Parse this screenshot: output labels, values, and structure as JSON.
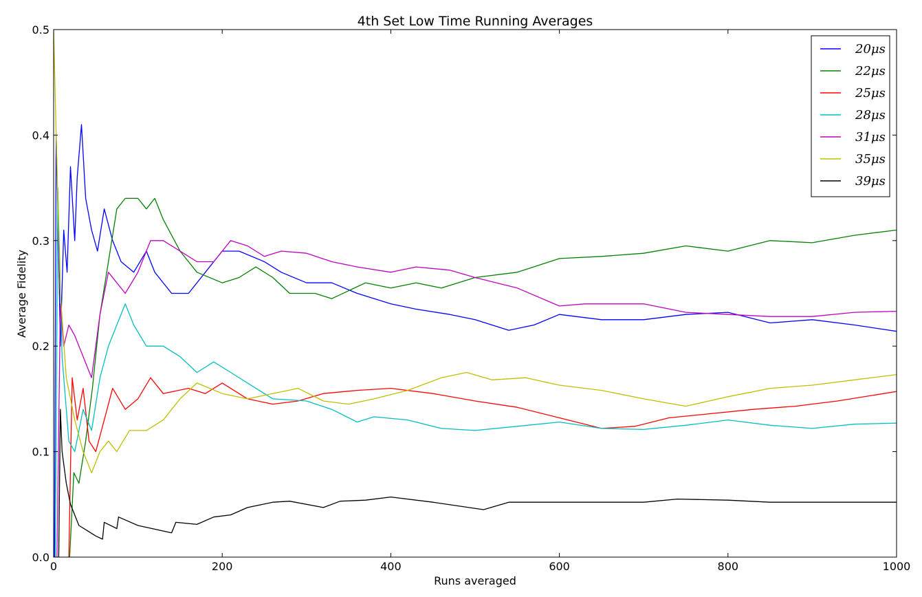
{
  "chart_data": {
    "type": "line",
    "title": "4th Set Low Time Running Averages",
    "xlabel": "Runs averaged",
    "ylabel": "Average Fidelity",
    "xlim": [
      0,
      1000
    ],
    "ylim": [
      0.0,
      0.5
    ],
    "xticks": [
      0,
      200,
      400,
      600,
      800,
      1000
    ],
    "xtick_labels": [
      "0",
      "200",
      "400",
      "600",
      "800",
      "1000"
    ],
    "yticks": [
      0.0,
      0.1,
      0.2,
      0.3,
      0.4,
      0.5
    ],
    "ytick_labels": [
      "0.0",
      "0.1",
      "0.2",
      "0.3",
      "0.4",
      "0.5"
    ],
    "grid": false,
    "legend_position": "top-right",
    "series": [
      {
        "name": "20μs",
        "color": "#0000ff",
        "points": [
          [
            1,
            0.0
          ],
          [
            3,
            0.4
          ],
          [
            5,
            0.33
          ],
          [
            8,
            0.2
          ],
          [
            12,
            0.31
          ],
          [
            16,
            0.27
          ],
          [
            20,
            0.37
          ],
          [
            25,
            0.3
          ],
          [
            28,
            0.36
          ],
          [
            33,
            0.41
          ],
          [
            38,
            0.34
          ],
          [
            45,
            0.31
          ],
          [
            52,
            0.29
          ],
          [
            60,
            0.33
          ],
          [
            70,
            0.3
          ],
          [
            80,
            0.28
          ],
          [
            95,
            0.27
          ],
          [
            110,
            0.29
          ],
          [
            120,
            0.27
          ],
          [
            140,
            0.25
          ],
          [
            160,
            0.25
          ],
          [
            180,
            0.27
          ],
          [
            200,
            0.29
          ],
          [
            220,
            0.29
          ],
          [
            250,
            0.28
          ],
          [
            270,
            0.27
          ],
          [
            300,
            0.26
          ],
          [
            330,
            0.26
          ],
          [
            360,
            0.25
          ],
          [
            400,
            0.24
          ],
          [
            430,
            0.235
          ],
          [
            470,
            0.23
          ],
          [
            500,
            0.225
          ],
          [
            540,
            0.215
          ],
          [
            570,
            0.22
          ],
          [
            600,
            0.23
          ],
          [
            650,
            0.225
          ],
          [
            700,
            0.225
          ],
          [
            750,
            0.23
          ],
          [
            800,
            0.232
          ],
          [
            850,
            0.222
          ],
          [
            900,
            0.225
          ],
          [
            950,
            0.22
          ],
          [
            1000,
            0.214
          ]
        ]
      },
      {
        "name": "22μs",
        "color": "#008000",
        "points": [
          [
            19,
            0.0
          ],
          [
            24,
            0.08
          ],
          [
            30,
            0.07
          ],
          [
            38,
            0.11
          ],
          [
            46,
            0.16
          ],
          [
            55,
            0.23
          ],
          [
            65,
            0.28
          ],
          [
            75,
            0.33
          ],
          [
            85,
            0.34
          ],
          [
            100,
            0.34
          ],
          [
            110,
            0.33
          ],
          [
            120,
            0.34
          ],
          [
            130,
            0.32
          ],
          [
            150,
            0.29
          ],
          [
            170,
            0.27
          ],
          [
            200,
            0.26
          ],
          [
            220,
            0.265
          ],
          [
            240,
            0.275
          ],
          [
            260,
            0.265
          ],
          [
            280,
            0.25
          ],
          [
            310,
            0.25
          ],
          [
            330,
            0.245
          ],
          [
            370,
            0.26
          ],
          [
            400,
            0.255
          ],
          [
            430,
            0.26
          ],
          [
            460,
            0.255
          ],
          [
            500,
            0.265
          ],
          [
            550,
            0.27
          ],
          [
            600,
            0.283
          ],
          [
            650,
            0.285
          ],
          [
            700,
            0.288
          ],
          [
            750,
            0.295
          ],
          [
            800,
            0.29
          ],
          [
            850,
            0.3
          ],
          [
            900,
            0.298
          ],
          [
            950,
            0.305
          ],
          [
            1000,
            0.31
          ]
        ]
      },
      {
        "name": "25μs",
        "color": "#ff0000",
        "points": [
          [
            18,
            0.0
          ],
          [
            22,
            0.17
          ],
          [
            28,
            0.13
          ],
          [
            35,
            0.16
          ],
          [
            42,
            0.11
          ],
          [
            50,
            0.1
          ],
          [
            60,
            0.13
          ],
          [
            70,
            0.16
          ],
          [
            85,
            0.14
          ],
          [
            100,
            0.15
          ],
          [
            115,
            0.17
          ],
          [
            130,
            0.155
          ],
          [
            160,
            0.16
          ],
          [
            180,
            0.155
          ],
          [
            200,
            0.165
          ],
          [
            230,
            0.15
          ],
          [
            260,
            0.145
          ],
          [
            290,
            0.148
          ],
          [
            320,
            0.155
          ],
          [
            360,
            0.158
          ],
          [
            400,
            0.16
          ],
          [
            450,
            0.155
          ],
          [
            500,
            0.148
          ],
          [
            550,
            0.142
          ],
          [
            600,
            0.132
          ],
          [
            650,
            0.122
          ],
          [
            690,
            0.124
          ],
          [
            730,
            0.132
          ],
          [
            780,
            0.136
          ],
          [
            830,
            0.14
          ],
          [
            880,
            0.143
          ],
          [
            930,
            0.148
          ],
          [
            1000,
            0.157
          ]
        ]
      },
      {
        "name": "28μs",
        "color": "#00bfbf",
        "points": [
          [
            2,
            0.0
          ],
          [
            5,
            0.35
          ],
          [
            10,
            0.19
          ],
          [
            18,
            0.11
          ],
          [
            25,
            0.1
          ],
          [
            35,
            0.14
          ],
          [
            45,
            0.12
          ],
          [
            55,
            0.17
          ],
          [
            65,
            0.2
          ],
          [
            75,
            0.22
          ],
          [
            85,
            0.24
          ],
          [
            95,
            0.22
          ],
          [
            110,
            0.2
          ],
          [
            130,
            0.2
          ],
          [
            150,
            0.19
          ],
          [
            170,
            0.175
          ],
          [
            190,
            0.185
          ],
          [
            210,
            0.175
          ],
          [
            240,
            0.16
          ],
          [
            260,
            0.15
          ],
          [
            300,
            0.148
          ],
          [
            330,
            0.14
          ],
          [
            360,
            0.128
          ],
          [
            380,
            0.133
          ],
          [
            420,
            0.13
          ],
          [
            460,
            0.122
          ],
          [
            500,
            0.12
          ],
          [
            550,
            0.124
          ],
          [
            600,
            0.128
          ],
          [
            650,
            0.122
          ],
          [
            700,
            0.121
          ],
          [
            750,
            0.125
          ],
          [
            800,
            0.13
          ],
          [
            850,
            0.125
          ],
          [
            900,
            0.122
          ],
          [
            950,
            0.126
          ],
          [
            1000,
            0.127
          ]
        ]
      },
      {
        "name": "31μs",
        "color": "#bf00bf",
        "points": [
          [
            4,
            0.0
          ],
          [
            8,
            0.24
          ],
          [
            12,
            0.2
          ],
          [
            18,
            0.22
          ],
          [
            25,
            0.21
          ],
          [
            35,
            0.19
          ],
          [
            45,
            0.17
          ],
          [
            55,
            0.23
          ],
          [
            65,
            0.27
          ],
          [
            75,
            0.26
          ],
          [
            85,
            0.25
          ],
          [
            100,
            0.27
          ],
          [
            115,
            0.3
          ],
          [
            130,
            0.3
          ],
          [
            150,
            0.29
          ],
          [
            170,
            0.28
          ],
          [
            190,
            0.28
          ],
          [
            210,
            0.3
          ],
          [
            230,
            0.295
          ],
          [
            250,
            0.285
          ],
          [
            270,
            0.29
          ],
          [
            300,
            0.288
          ],
          [
            330,
            0.28
          ],
          [
            360,
            0.275
          ],
          [
            400,
            0.27
          ],
          [
            430,
            0.275
          ],
          [
            470,
            0.272
          ],
          [
            500,
            0.265
          ],
          [
            550,
            0.255
          ],
          [
            600,
            0.238
          ],
          [
            630,
            0.24
          ],
          [
            670,
            0.24
          ],
          [
            700,
            0.24
          ],
          [
            750,
            0.232
          ],
          [
            800,
            0.23
          ],
          [
            850,
            0.228
          ],
          [
            900,
            0.228
          ],
          [
            950,
            0.232
          ],
          [
            1000,
            0.233
          ]
        ]
      },
      {
        "name": "35μs",
        "color": "#bfbf00",
        "points": [
          [
            0,
            0.5
          ],
          [
            3,
            0.4
          ],
          [
            8,
            0.25
          ],
          [
            15,
            0.17
          ],
          [
            25,
            0.13
          ],
          [
            35,
            0.1
          ],
          [
            45,
            0.08
          ],
          [
            55,
            0.1
          ],
          [
            65,
            0.11
          ],
          [
            75,
            0.1
          ],
          [
            90,
            0.12
          ],
          [
            110,
            0.12
          ],
          [
            130,
            0.13
          ],
          [
            150,
            0.15
          ],
          [
            170,
            0.165
          ],
          [
            200,
            0.155
          ],
          [
            230,
            0.15
          ],
          [
            260,
            0.155
          ],
          [
            290,
            0.16
          ],
          [
            320,
            0.148
          ],
          [
            350,
            0.145
          ],
          [
            380,
            0.15
          ],
          [
            420,
            0.158
          ],
          [
            460,
            0.17
          ],
          [
            490,
            0.175
          ],
          [
            520,
            0.168
          ],
          [
            560,
            0.17
          ],
          [
            600,
            0.163
          ],
          [
            650,
            0.158
          ],
          [
            700,
            0.15
          ],
          [
            750,
            0.143
          ],
          [
            800,
            0.152
          ],
          [
            850,
            0.16
          ],
          [
            900,
            0.163
          ],
          [
            950,
            0.168
          ],
          [
            1000,
            0.173
          ]
        ]
      },
      {
        "name": "39μs",
        "color": "#000000",
        "points": [
          [
            6,
            0.0
          ],
          [
            8,
            0.14
          ],
          [
            10,
            0.1
          ],
          [
            15,
            0.07
          ],
          [
            20,
            0.05
          ],
          [
            30,
            0.03
          ],
          [
            40,
            0.025
          ],
          [
            50,
            0.02
          ],
          [
            58,
            0.017
          ],
          [
            60,
            0.033
          ],
          [
            75,
            0.027
          ],
          [
            77,
            0.038
          ],
          [
            100,
            0.03
          ],
          [
            140,
            0.023
          ],
          [
            145,
            0.033
          ],
          [
            170,
            0.031
          ],
          [
            190,
            0.038
          ],
          [
            210,
            0.04
          ],
          [
            230,
            0.047
          ],
          [
            260,
            0.052
          ],
          [
            280,
            0.053
          ],
          [
            320,
            0.047
          ],
          [
            340,
            0.053
          ],
          [
            370,
            0.054
          ],
          [
            400,
            0.057
          ],
          [
            450,
            0.052
          ],
          [
            510,
            0.045
          ],
          [
            540,
            0.052
          ],
          [
            600,
            0.052
          ],
          [
            650,
            0.052
          ],
          [
            700,
            0.052
          ],
          [
            740,
            0.055
          ],
          [
            800,
            0.054
          ],
          [
            850,
            0.052
          ],
          [
            900,
            0.052
          ],
          [
            950,
            0.052
          ],
          [
            1000,
            0.052
          ]
        ]
      }
    ]
  }
}
